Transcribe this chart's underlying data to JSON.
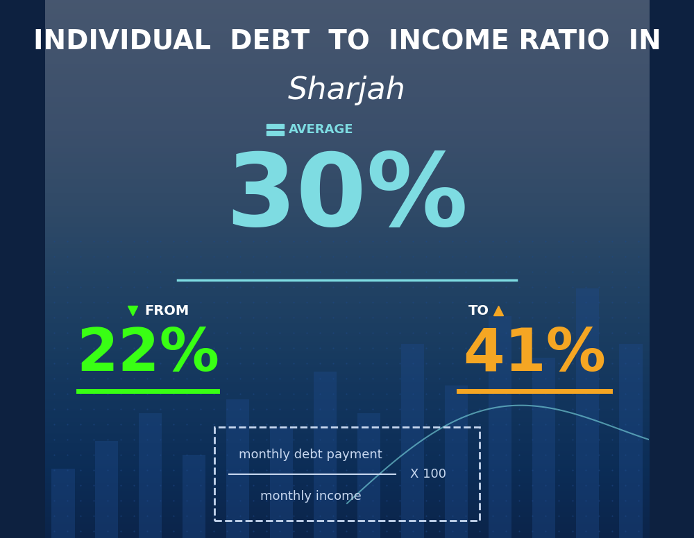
{
  "title_line1": "INDIVIDUAL  DEBT  TO  INCOME RATIO  IN",
  "title_line2": "Sharjah",
  "title_color": "#ffffff",
  "bg_color_top": "#0d2140",
  "average_label": "AVERAGE",
  "average_value": "30%",
  "average_color": "#7edce2",
  "avg_icon_color": "#7edce2",
  "from_label": "FROM",
  "from_value": "22%",
  "from_color": "#39ff14",
  "to_label": "TO",
  "to_value": "41%",
  "to_color": "#f5a623",
  "formula_numerator": "monthly debt payment",
  "formula_denominator": "monthly income",
  "formula_multiplier": "X 100",
  "formula_text_color": "#c8d8f0",
  "separator_color": "#7edce2",
  "chart_line_color": "#7edce2"
}
